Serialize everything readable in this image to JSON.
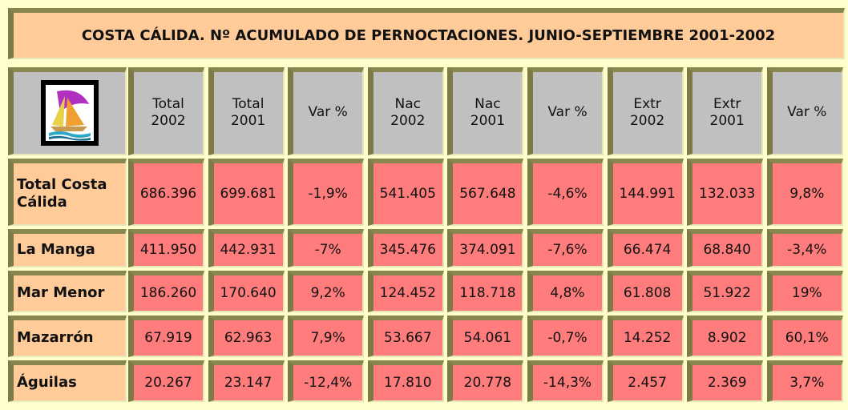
{
  "title": "COSTA CÁLIDA. Nº ACUMULADO DE PERNOCTACIONES. JUNIO-SEPTIEMBRE 2001-2002",
  "table": {
    "header": [
      "Total\n2002",
      "Total\n2001",
      "Var %",
      "Nac\n2002",
      "Nac\n2001",
      "Var %",
      "Extr\n2002",
      "Extr\n2001",
      "Var %"
    ],
    "rows": [
      [
        "Total Costa\nCálida",
        "686.396",
        "699.681",
        "-1,9%",
        "541.405",
        "567.648",
        "-4,6%",
        "144.991",
        "132.033",
        "9,8%"
      ],
      [
        "La Manga",
        "411.950",
        "442.931",
        "-7%",
        "345.476",
        "374.091",
        "-7,6%",
        "66.474",
        "68.840",
        "-3,4%"
      ],
      [
        "Mar Menor",
        "186.260",
        "170.640",
        "9,2%",
        "124.452",
        "118.718",
        "4,8%",
        "61.808",
        "51.922",
        "19%"
      ],
      [
        "Mazarrón",
        "67.919",
        "62.963",
        "7,9%",
        "53.667",
        "54.061",
        "-0,7%",
        "14.252",
        "8.902",
        "60,1%"
      ],
      [
        "Águilas",
        "20.267",
        "23.147",
        "-12,4%",
        "17.810",
        "20.778",
        "-14,3%",
        "2.457",
        "2.369",
        "3,7%"
      ]
    ]
  }
}
